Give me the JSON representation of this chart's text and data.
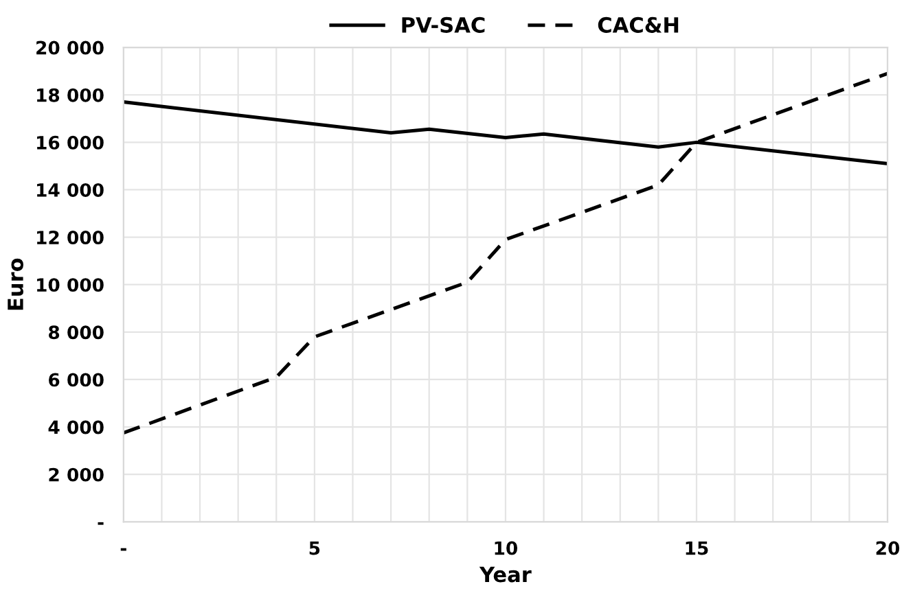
{
  "chart_data": {
    "type": "line",
    "xlabel": "Year",
    "ylabel": "Euro",
    "xlim": [
      0,
      20
    ],
    "ylim": [
      0,
      20000
    ],
    "xticks": [
      {
        "value": 0,
        "label": "-"
      },
      {
        "value": 1,
        "label": null
      },
      {
        "value": 2,
        "label": null
      },
      {
        "value": 3,
        "label": null
      },
      {
        "value": 4,
        "label": null
      },
      5,
      {
        "value": 6,
        "label": null
      },
      {
        "value": 7,
        "label": null
      },
      {
        "value": 8,
        "label": null
      },
      {
        "value": 9,
        "label": null
      },
      10,
      {
        "value": 11,
        "label": null
      },
      {
        "value": 12,
        "label": null
      },
      {
        "value": 13,
        "label": null
      },
      {
        "value": 14,
        "label": null
      },
      15,
      {
        "value": 16,
        "label": null
      },
      {
        "value": 17,
        "label": null
      },
      {
        "value": 18,
        "label": null
      },
      {
        "value": 19,
        "label": null
      },
      20
    ],
    "yticks": [
      {
        "value": 0,
        "label": "-"
      },
      {
        "value": 2000,
        "label": "2 000"
      },
      {
        "value": 4000,
        "label": "4 000"
      },
      {
        "value": 6000,
        "label": "6 000"
      },
      {
        "value": 8000,
        "label": "8 000"
      },
      {
        "value": 10000,
        "label": "10 000"
      },
      {
        "value": 12000,
        "label": "12 000"
      },
      {
        "value": 14000,
        "label": "14 000"
      },
      {
        "value": 16000,
        "label": "16 000"
      },
      {
        "value": 18000,
        "label": "18 000"
      },
      {
        "value": 20000,
        "label": "20 000"
      }
    ],
    "grid": true,
    "legend": "top",
    "marker": "none",
    "series": [
      {
        "name": "PV-SAC",
        "color": "#000000",
        "line_style": "solid",
        "x": [
          0,
          7,
          8,
          10,
          11,
          14,
          15,
          20
        ],
        "values": [
          17700,
          16400,
          16550,
          16200,
          16350,
          15800,
          16000,
          15100
        ]
      },
      {
        "name": "CAC&H",
        "color": "#000000",
        "line_style": "dashed",
        "x": [
          0,
          4,
          5,
          9,
          10,
          14,
          15,
          20
        ],
        "values": [
          3750,
          6100,
          7800,
          10100,
          11900,
          14200,
          16000,
          18900
        ]
      }
    ]
  }
}
